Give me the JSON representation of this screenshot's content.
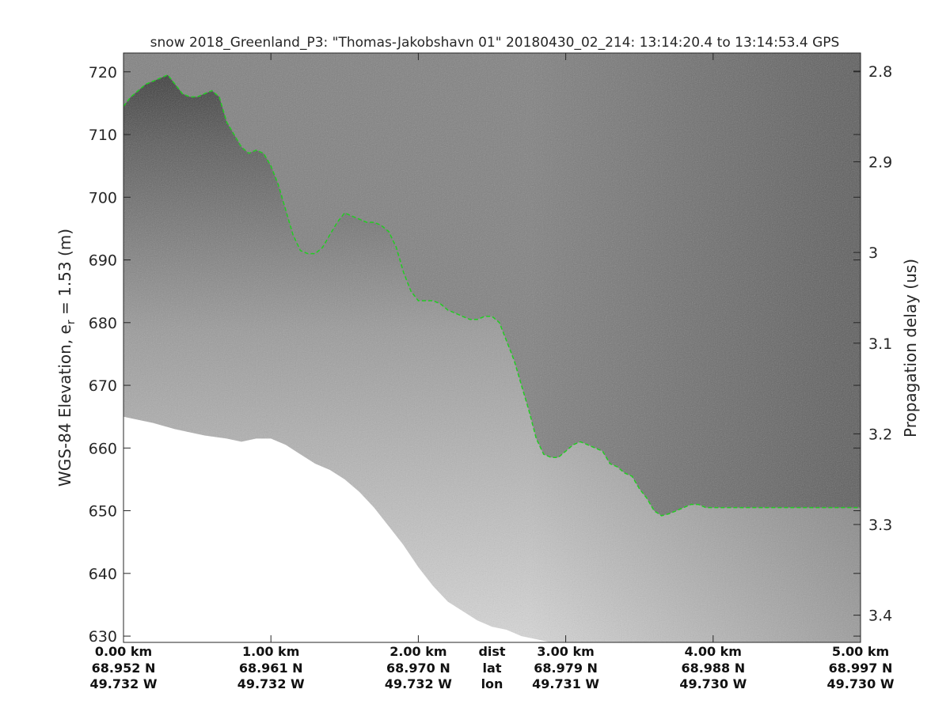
{
  "chart_data": {
    "type": "heatmap",
    "title": "snow 2018_Greenland_P3: \"Thomas-Jakobshavn 01\"  20180430_02_214: 13:14:20.4 to 13:14:53.4 GPS",
    "ylabel_left_main": "WGS-84 Elevation, e",
    "ylabel_left_sub": "r",
    "ylabel_left_tail": " = 1.53 (m)",
    "ylabel_right": "Propagation delay (us)",
    "xlim": [
      0.0,
      5.0
    ],
    "ylim": [
      629,
      723
    ],
    "right_ylim": [
      2.78,
      3.43
    ],
    "yticks_left": [
      630,
      640,
      650,
      660,
      670,
      680,
      690,
      700,
      710,
      720
    ],
    "yticks_right": [
      "2.8",
      "2.9",
      "3",
      "3.1",
      "3.2",
      "3.3",
      "3.4"
    ],
    "yticks_right_values": [
      2.8,
      2.9,
      3.0,
      3.1,
      3.2,
      3.3,
      3.4
    ],
    "xticks": [
      {
        "x": 0.0,
        "dist": "0.00 km",
        "lat": "68.952 N",
        "lon": "49.732 W"
      },
      {
        "x": 1.0,
        "dist": "1.00 km",
        "lat": "68.961 N",
        "lon": "49.732 W"
      },
      {
        "x": 2.0,
        "dist": "2.00 km",
        "lat": "68.970 N",
        "lon": "49.732 W"
      },
      {
        "x": 3.0,
        "dist": "3.00 km",
        "lat": "68.979 N",
        "lon": "49.731 W"
      },
      {
        "x": 4.0,
        "dist": "4.00 km",
        "lat": "68.988 N",
        "lon": "49.730 W"
      },
      {
        "x": 5.0,
        "dist": "5.00 km",
        "lat": "68.997 N",
        "lon": "49.730 W"
      }
    ],
    "xtick_legend": {
      "x": 2.5,
      "dist": "dist",
      "lat": "lat",
      "lon": "lon"
    },
    "surface_series": {
      "name": "",
      "color": "#22cc22",
      "x": [
        0.0,
        0.05,
        0.1,
        0.15,
        0.2,
        0.25,
        0.3,
        0.35,
        0.4,
        0.45,
        0.5,
        0.55,
        0.6,
        0.65,
        0.7,
        0.75,
        0.8,
        0.85,
        0.9,
        0.95,
        1.0,
        1.05,
        1.1,
        1.15,
        1.2,
        1.25,
        1.3,
        1.35,
        1.4,
        1.45,
        1.5,
        1.55,
        1.6,
        1.65,
        1.7,
        1.75,
        1.8,
        1.85,
        1.9,
        1.95,
        2.0,
        2.05,
        2.1,
        2.15,
        2.2,
        2.25,
        2.3,
        2.35,
        2.4,
        2.45,
        2.5,
        2.55,
        2.6,
        2.65,
        2.7,
        2.75,
        2.8,
        2.85,
        2.9,
        2.95,
        3.0,
        3.05,
        3.1,
        3.15,
        3.2,
        3.25,
        3.3,
        3.35,
        3.4,
        3.45,
        3.5,
        3.55,
        3.6,
        3.65,
        3.7,
        3.75,
        3.8,
        3.85,
        3.9,
        3.95,
        4.0,
        4.05,
        4.1,
        4.15,
        4.2,
        4.25,
        4.3,
        4.35,
        4.4,
        4.45,
        4.5,
        4.55,
        4.6,
        4.65,
        4.7,
        4.75,
        4.8,
        4.85,
        4.9,
        4.95,
        5.0
      ],
      "y": [
        714.5,
        716,
        717,
        718,
        718.5,
        719,
        719.5,
        718,
        716.5,
        716,
        716,
        716.5,
        717,
        716,
        712,
        710,
        708,
        707,
        707.5,
        707,
        705,
        702,
        698,
        694,
        691.5,
        691,
        691,
        692,
        694,
        696,
        697.5,
        697,
        696.5,
        696,
        696,
        695.5,
        694.5,
        692,
        688,
        685,
        683.5,
        683.5,
        683.5,
        683,
        682,
        681.5,
        681,
        680.5,
        680.5,
        681,
        681,
        680,
        677,
        674,
        670,
        666,
        661.5,
        659,
        658.5,
        658.5,
        659.5,
        660.5,
        661,
        660.5,
        660,
        659.5,
        657.5,
        657,
        656,
        655.5,
        653.5,
        652,
        650,
        649.2,
        649.5,
        650,
        650.5,
        651,
        651,
        650.5,
        650.5,
        650.5,
        650.5,
        650.5,
        650.5,
        650.5,
        650.5,
        650.5,
        650.5,
        650.5,
        650.5,
        650.5,
        650.5,
        650.5,
        650.5,
        650.5,
        650.5,
        650.5,
        650.5,
        650.5,
        650.5
      ]
    },
    "nodata_boundary": {
      "x": [
        0.0,
        0.2,
        0.35,
        0.45,
        0.55,
        0.7,
        0.8,
        0.9,
        1.0,
        1.1,
        1.2,
        1.3,
        1.4,
        1.5,
        1.6,
        1.7,
        1.8,
        1.9,
        2.0,
        2.1,
        2.2,
        2.3,
        2.4,
        2.5,
        2.6,
        2.7,
        2.8,
        2.9,
        3.0
      ],
      "y": [
        665,
        664,
        663,
        662.5,
        662,
        661.5,
        661,
        661.5,
        661.5,
        660.5,
        659,
        657.5,
        656.5,
        655,
        653,
        650.5,
        647.5,
        644.5,
        641,
        638,
        635.5,
        634,
        632.5,
        631.5,
        631,
        630,
        629.5,
        629,
        629
      ]
    }
  }
}
